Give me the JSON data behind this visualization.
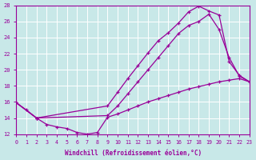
{
  "xlabel": "Windchill (Refroidissement éolien,°C)",
  "bg_color": "#c8e8e8",
  "line_color": "#990099",
  "grid_color": "#ffffff",
  "xlim": [
    0,
    23
  ],
  "ylim": [
    12,
    28
  ],
  "xticks": [
    0,
    1,
    2,
    3,
    4,
    5,
    6,
    7,
    8,
    9,
    10,
    11,
    12,
    13,
    14,
    15,
    16,
    17,
    18,
    19,
    20,
    21,
    22,
    23
  ],
  "yticks": [
    12,
    14,
    16,
    18,
    20,
    22,
    24,
    26,
    28
  ],
  "line1_x": [
    0,
    1,
    2,
    3,
    4,
    5,
    6,
    7,
    8,
    9,
    10,
    11,
    12,
    13,
    14,
    15,
    16,
    17,
    18,
    19,
    20,
    21,
    22,
    23
  ],
  "line1_y": [
    15.9,
    15.0,
    14.0,
    13.2,
    12.9,
    12.7,
    12.2,
    12.0,
    12.2,
    14.1,
    14.5,
    15.0,
    15.5,
    16.0,
    16.4,
    16.8,
    17.2,
    17.6,
    17.9,
    18.2,
    18.5,
    18.7,
    18.9,
    18.5
  ],
  "line2_x": [
    0,
    2,
    9,
    10,
    11,
    12,
    13,
    14,
    15,
    16,
    17,
    18,
    19,
    20,
    21,
    22,
    23
  ],
  "line2_y": [
    15.9,
    14.0,
    15.5,
    17.2,
    18.9,
    20.5,
    22.1,
    23.6,
    24.6,
    25.8,
    27.2,
    27.9,
    27.3,
    26.8,
    21.0,
    19.3,
    18.5
  ],
  "line3_x": [
    0,
    2,
    9,
    10,
    11,
    12,
    13,
    14,
    15,
    16,
    17,
    18,
    19,
    20,
    21,
    22,
    23
  ],
  "line3_y": [
    15.9,
    14.0,
    14.3,
    15.5,
    17.0,
    18.5,
    20.0,
    21.5,
    23.0,
    24.5,
    25.5,
    26.0,
    26.9,
    25.0,
    21.5,
    19.2,
    18.5
  ]
}
